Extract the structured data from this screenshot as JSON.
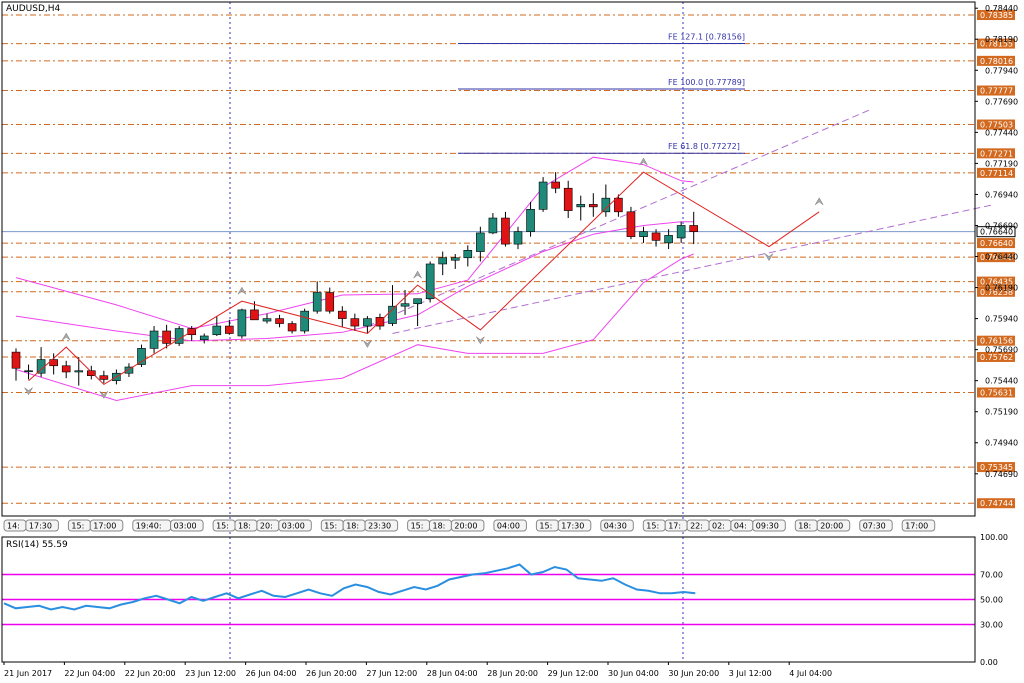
{
  "main_panel": {
    "title": "AUDUSD,H4",
    "price_axis_ticks": [
      "0.78440",
      "0.78190",
      "0.77940",
      "0.77690",
      "0.77440",
      "0.77190",
      "0.76940",
      "0.76690",
      "0.76440",
      "0.76190",
      "0.75940",
      "0.75690",
      "0.75440",
      "0.75190",
      "0.74940",
      "0.74690"
    ],
    "level_labels": [
      "0.78385",
      "0.78155",
      "0.78016",
      "0.77777",
      "0.77503",
      "0.77271",
      "0.77114",
      "0.76640",
      "0.76548",
      "0.76435",
      "0.76238",
      "0.76156",
      "0.75762",
      "0.75631",
      "0.75345",
      "0.74744",
      "0.74453"
    ],
    "current_price_label": "0.76640",
    "fib_labels": [
      "FE 127.1 [0.78156]",
      "FE 100.0 [0.77789]",
      "FE 61.8 [0.77272]"
    ]
  },
  "session_markers": [
    "14:",
    "17:30",
    "15:",
    "17:00",
    "19:40:",
    "03:00",
    "15:",
    "18:",
    "20:",
    "03:00",
    "15:",
    "18:",
    "23:30",
    "15:",
    "18:",
    "20:00",
    "04:00",
    "15:",
    "17:30",
    "04:30",
    "15:",
    "17:",
    "22:",
    "02:",
    "04:",
    "09:30",
    "18:",
    "20:00",
    "07:30",
    "17:00"
  ],
  "rsi_panel": {
    "title": "RSI(14) 55.59",
    "axis_ticks": [
      "100.00",
      "70.00",
      "50.00",
      "30.00",
      "0.00"
    ]
  },
  "time_axis": [
    "21 Jun 2017",
    "22 Jun 04:00",
    "22 Jun 20:00",
    "23 Jun 12:00",
    "26 Jun 04:00",
    "26 Jun 20:00",
    "27 Jun 12:00",
    "28 Jun 04:00",
    "28 Jun 20:00",
    "29 Jun 12:00",
    "30 Jun 04:00",
    "30 Jun 20:00",
    "3 Jul 12:00",
    "4 Jul 04:00"
  ],
  "colors": {
    "bull": "#1f8a7a",
    "bear": "#e01414",
    "level_line": "#d2691e",
    "fib_line": "#3333aa",
    "bollinger": "#ee44ee",
    "channel": "#b070d0",
    "zigzag": "#e02020",
    "rsi_line": "#2a8fe0",
    "rsi_levels": "#ee00ee",
    "grid_vline": "#3333cc"
  },
  "chart_data": [
    {
      "type": "candlestick",
      "title": "AUDUSD,H4",
      "ylim": [
        0.7435,
        0.7849
      ],
      "grid": false,
      "candles": [
        {
          "o": 0.7567,
          "h": 0.757,
          "l": 0.7544,
          "c": 0.7554
        },
        {
          "o": 0.7552,
          "h": 0.7557,
          "l": 0.7545,
          "c": 0.7552
        },
        {
          "o": 0.755,
          "h": 0.7571,
          "l": 0.7547,
          "c": 0.7561
        },
        {
          "o": 0.7561,
          "h": 0.7566,
          "l": 0.7549,
          "c": 0.7556
        },
        {
          "o": 0.7556,
          "h": 0.756,
          "l": 0.7546,
          "c": 0.7551
        },
        {
          "o": 0.7551,
          "h": 0.7563,
          "l": 0.754,
          "c": 0.7552
        },
        {
          "o": 0.7552,
          "h": 0.7556,
          "l": 0.7545,
          "c": 0.7548
        },
        {
          "o": 0.7548,
          "h": 0.7552,
          "l": 0.7542,
          "c": 0.7545
        },
        {
          "o": 0.7544,
          "h": 0.7553,
          "l": 0.7541,
          "c": 0.755
        },
        {
          "o": 0.755,
          "h": 0.7558,
          "l": 0.7547,
          "c": 0.7555
        },
        {
          "o": 0.7557,
          "h": 0.7573,
          "l": 0.7555,
          "c": 0.757
        },
        {
          "o": 0.757,
          "h": 0.7588,
          "l": 0.7566,
          "c": 0.7584
        },
        {
          "o": 0.7584,
          "h": 0.7589,
          "l": 0.757,
          "c": 0.7574
        },
        {
          "o": 0.7574,
          "h": 0.7588,
          "l": 0.7572,
          "c": 0.7586
        },
        {
          "o": 0.7586,
          "h": 0.7588,
          "l": 0.7576,
          "c": 0.7581
        },
        {
          "o": 0.7577,
          "h": 0.7582,
          "l": 0.7574,
          "c": 0.758
        },
        {
          "o": 0.7581,
          "h": 0.7596,
          "l": 0.758,
          "c": 0.7588
        },
        {
          "o": 0.7588,
          "h": 0.7593,
          "l": 0.7581,
          "c": 0.7582
        },
        {
          "o": 0.758,
          "h": 0.7602,
          "l": 0.7578,
          "c": 0.7601
        },
        {
          "o": 0.7601,
          "h": 0.7608,
          "l": 0.7593,
          "c": 0.7593
        },
        {
          "o": 0.7592,
          "h": 0.7598,
          "l": 0.759,
          "c": 0.7594
        },
        {
          "o": 0.7594,
          "h": 0.7597,
          "l": 0.7587,
          "c": 0.759
        },
        {
          "o": 0.759,
          "h": 0.7592,
          "l": 0.7582,
          "c": 0.7584
        },
        {
          "o": 0.7584,
          "h": 0.7602,
          "l": 0.7582,
          "c": 0.76
        },
        {
          "o": 0.76,
          "h": 0.7624,
          "l": 0.7598,
          "c": 0.7615
        },
        {
          "o": 0.7615,
          "h": 0.7619,
          "l": 0.7598,
          "c": 0.76
        },
        {
          "o": 0.76,
          "h": 0.7604,
          "l": 0.7587,
          "c": 0.7594
        },
        {
          "o": 0.7594,
          "h": 0.7598,
          "l": 0.7584,
          "c": 0.7588
        },
        {
          "o": 0.7588,
          "h": 0.7596,
          "l": 0.7582,
          "c": 0.7594
        },
        {
          "o": 0.7595,
          "h": 0.7598,
          "l": 0.7585,
          "c": 0.7588
        },
        {
          "o": 0.759,
          "h": 0.7621,
          "l": 0.7588,
          "c": 0.7604
        },
        {
          "o": 0.7604,
          "h": 0.7617,
          "l": 0.7597,
          "c": 0.7606
        },
        {
          "o": 0.7606,
          "h": 0.7609,
          "l": 0.7588,
          "c": 0.761
        },
        {
          "o": 0.761,
          "h": 0.764,
          "l": 0.7607,
          "c": 0.7638
        },
        {
          "o": 0.7638,
          "h": 0.7648,
          "l": 0.7629,
          "c": 0.7643
        },
        {
          "o": 0.7641,
          "h": 0.7646,
          "l": 0.7634,
          "c": 0.7643
        },
        {
          "o": 0.7643,
          "h": 0.7653,
          "l": 0.7636,
          "c": 0.7649
        },
        {
          "o": 0.7648,
          "h": 0.7668,
          "l": 0.764,
          "c": 0.7663
        },
        {
          "o": 0.7663,
          "h": 0.7679,
          "l": 0.7662,
          "c": 0.7675
        },
        {
          "o": 0.7675,
          "h": 0.768,
          "l": 0.7652,
          "c": 0.7654
        },
        {
          "o": 0.7654,
          "h": 0.7668,
          "l": 0.765,
          "c": 0.7664
        },
        {
          "o": 0.7664,
          "h": 0.7688,
          "l": 0.766,
          "c": 0.7682
        },
        {
          "o": 0.7682,
          "h": 0.7708,
          "l": 0.768,
          "c": 0.7704
        },
        {
          "o": 0.7704,
          "h": 0.7712,
          "l": 0.7695,
          "c": 0.7699
        },
        {
          "o": 0.7699,
          "h": 0.7705,
          "l": 0.7675,
          "c": 0.7681
        },
        {
          "o": 0.7684,
          "h": 0.7693,
          "l": 0.7673,
          "c": 0.7686
        },
        {
          "o": 0.7686,
          "h": 0.7695,
          "l": 0.7676,
          "c": 0.7684
        },
        {
          "o": 0.768,
          "h": 0.7702,
          "l": 0.7676,
          "c": 0.7691
        },
        {
          "o": 0.7691,
          "h": 0.7694,
          "l": 0.7676,
          "c": 0.768
        },
        {
          "o": 0.768,
          "h": 0.7684,
          "l": 0.7658,
          "c": 0.766
        },
        {
          "o": 0.766,
          "h": 0.7668,
          "l": 0.7655,
          "c": 0.7664
        },
        {
          "o": 0.7663,
          "h": 0.7666,
          "l": 0.7652,
          "c": 0.7657
        },
        {
          "o": 0.7655,
          "h": 0.7666,
          "l": 0.765,
          "c": 0.7661
        },
        {
          "o": 0.7659,
          "h": 0.7672,
          "l": 0.7655,
          "c": 0.7669
        },
        {
          "o": 0.7669,
          "h": 0.768,
          "l": 0.7654,
          "c": 0.7664
        }
      ],
      "price_levels": [
        0.78385,
        0.78155,
        0.78016,
        0.77777,
        0.77503,
        0.77271,
        0.77114,
        0.76548,
        0.76435,
        0.76238,
        0.76156,
        0.75762,
        0.75631,
        0.75345,
        0.74744,
        0.74453
      ],
      "current_price": 0.7664,
      "fibonacci_expansion": [
        {
          "label": "FE 127.1 [0.78156]",
          "value": 0.78156
        },
        {
          "label": "FE 100.0 [0.77789]",
          "value": 0.77789
        },
        {
          "label": "FE 61.8 [0.77272]",
          "value": 0.77272
        }
      ],
      "bollinger_bands": {
        "upper": [
          [
            0,
            0.7627
          ],
          [
            8,
            0.7605
          ],
          [
            14,
            0.7586
          ],
          [
            20,
            0.7598
          ],
          [
            26,
            0.7613
          ],
          [
            32,
            0.7614
          ],
          [
            36,
            0.7625
          ],
          [
            42,
            0.77
          ],
          [
            46,
            0.7724
          ],
          [
            50,
            0.7718
          ],
          [
            53,
            0.7705
          ],
          [
            54,
            0.7704
          ]
        ],
        "middle": [
          [
            0,
            0.7596
          ],
          [
            8,
            0.7584
          ],
          [
            14,
            0.7576
          ],
          [
            20,
            0.7578
          ],
          [
            26,
            0.7583
          ],
          [
            32,
            0.7597
          ],
          [
            36,
            0.762
          ],
          [
            42,
            0.7648
          ],
          [
            46,
            0.7662
          ],
          [
            50,
            0.7669
          ],
          [
            53,
            0.7672
          ],
          [
            54,
            0.7672
          ]
        ],
        "lower": [
          [
            0,
            0.7553
          ],
          [
            8,
            0.7528
          ],
          [
            14,
            0.754
          ],
          [
            20,
            0.754
          ],
          [
            26,
            0.7546
          ],
          [
            32,
            0.7573
          ],
          [
            36,
            0.7566
          ],
          [
            42,
            0.7566
          ],
          [
            46,
            0.7577
          ],
          [
            50,
            0.7623
          ],
          [
            53,
            0.7642
          ],
          [
            54,
            0.7646
          ]
        ]
      },
      "zigzag": [
        [
          1,
          0.7544
        ],
        [
          4,
          0.7571
        ],
        [
          7,
          0.7541
        ],
        [
          18,
          0.7608
        ],
        [
          28,
          0.7582
        ],
        [
          32,
          0.7621
        ],
        [
          37,
          0.7585
        ],
        [
          50,
          0.7712
        ],
        [
          60,
          0.7652
        ],
        [
          64,
          0.768
        ]
      ],
      "channel_lines": [
        {
          "from": [
            28,
            0.7588
          ],
          "to": [
            68,
            0.7762
          ]
        },
        {
          "from": [
            30,
            0.7582
          ],
          "to": [
            78,
            0.7686
          ]
        }
      ]
    },
    {
      "type": "line",
      "title": "RSI(14) 55.59",
      "ylim": [
        0,
        100
      ],
      "levels": [
        70,
        50,
        30
      ],
      "series": [
        {
          "name": "RSI(14)",
          "values": [
            47,
            43,
            44,
            45,
            42,
            44,
            42,
            45,
            44,
            43,
            46,
            48,
            51,
            53,
            50,
            47,
            52,
            49,
            52,
            55,
            51,
            54,
            57,
            53,
            52,
            55,
            58,
            55,
            53,
            59,
            62,
            60,
            56,
            54,
            57,
            60,
            58,
            61,
            66,
            68,
            70,
            71,
            73,
            75,
            78,
            70,
            72,
            76,
            74,
            67,
            66,
            65,
            67,
            62,
            58,
            57,
            55,
            55,
            56,
            55
          ]
        }
      ]
    }
  ]
}
